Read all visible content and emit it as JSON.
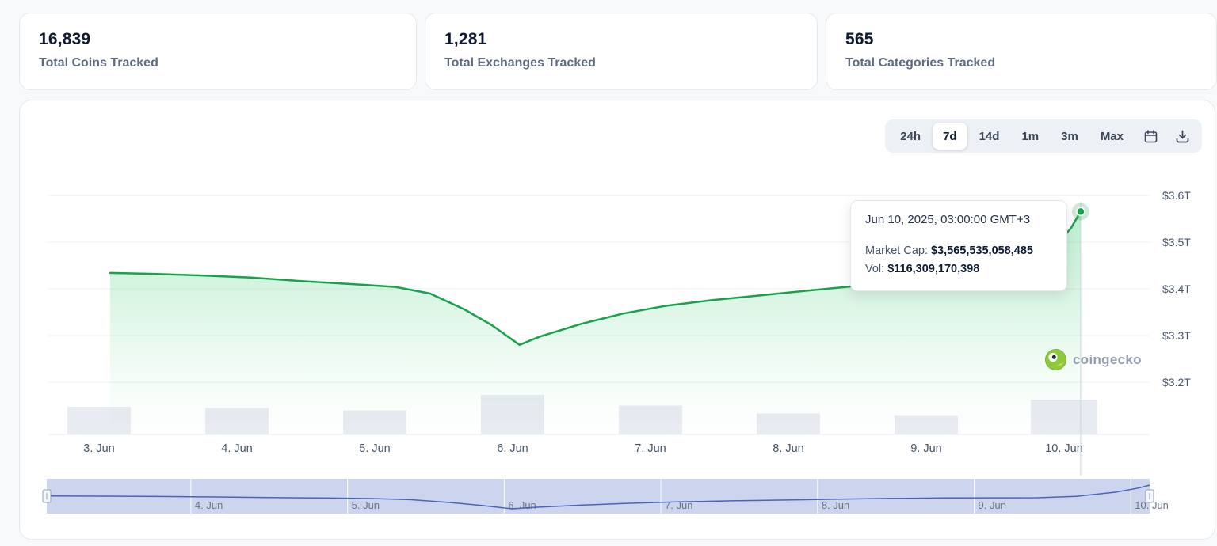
{
  "stats": [
    {
      "value": "16,839",
      "label": "Total Coins Tracked"
    },
    {
      "value": "1,281",
      "label": "Total Exchanges Tracked"
    },
    {
      "value": "565",
      "label": "Total Categories Tracked"
    }
  ],
  "toolbar": {
    "ranges": [
      "24h",
      "7d",
      "14d",
      "1m",
      "3m",
      "Max"
    ],
    "selected": "7d"
  },
  "chart": {
    "tooltip": {
      "datetime": "Jun 10, 2025, 03:00:00 GMT+3",
      "market_cap_label": "Market Cap:",
      "market_cap_value": "$3,565,535,058,485",
      "vol_label": "Vol:",
      "vol_value": "$116,309,170,398"
    },
    "watermark_text": "coingecko"
  },
  "chart_data": {
    "type": "area",
    "title": "",
    "x_labels": [
      "3. Jun",
      "4. Jun",
      "5. Jun",
      "6. Jun",
      "7. Jun",
      "8. Jun",
      "9. Jun",
      "10. Jun"
    ],
    "y_ticks": [
      {
        "label": "$3.6T",
        "value": 3.6
      },
      {
        "label": "$3.5T",
        "value": 3.5
      },
      {
        "label": "$3.4T",
        "value": 3.4
      },
      {
        "label": "$3.3T",
        "value": 3.3
      },
      {
        "label": "$3.2T",
        "value": 3.2
      }
    ],
    "ylim": [
      3.15,
      3.62
    ],
    "grid": true,
    "legend": "none",
    "series": [
      {
        "name": "Market Cap (USD trillions)",
        "type": "line",
        "color": "#16a34a",
        "points": [
          [
            0.08,
            3.434
          ],
          [
            0.4,
            3.432
          ],
          [
            0.8,
            3.428
          ],
          [
            1.1,
            3.424
          ],
          [
            1.5,
            3.416
          ],
          [
            1.9,
            3.409
          ],
          [
            2.15,
            3.404
          ],
          [
            2.4,
            3.39
          ],
          [
            2.65,
            3.356
          ],
          [
            2.85,
            3.322
          ],
          [
            3.05,
            3.28
          ],
          [
            3.2,
            3.298
          ],
          [
            3.5,
            3.325
          ],
          [
            3.8,
            3.347
          ],
          [
            4.1,
            3.363
          ],
          [
            4.45,
            3.376
          ],
          [
            4.8,
            3.386
          ],
          [
            5.1,
            3.395
          ],
          [
            5.45,
            3.405
          ],
          [
            5.8,
            3.41
          ],
          [
            6.1,
            3.412
          ],
          [
            6.4,
            3.413
          ],
          [
            6.65,
            3.43
          ],
          [
            6.9,
            3.48
          ],
          [
            7.05,
            3.53
          ],
          [
            7.12,
            3.5655
          ]
        ]
      },
      {
        "name": "24h Volume (relative)",
        "type": "bar",
        "color": "#e9ebf2",
        "values": [
          0.7,
          0.67,
          0.61,
          1.0,
          0.73,
          0.53,
          0.47,
          0.88
        ]
      }
    ],
    "marker": {
      "day": 7.12,
      "value": 3.5655
    },
    "navigator": {
      "labels": [
        "4. Jun",
        "5. Jun",
        "6. Jun",
        "7. Jun",
        "8. Jun",
        "9. Jun",
        "10. Jun"
      ],
      "band_color": "#cdd4ed",
      "line_color": "#4a64b8"
    }
  }
}
